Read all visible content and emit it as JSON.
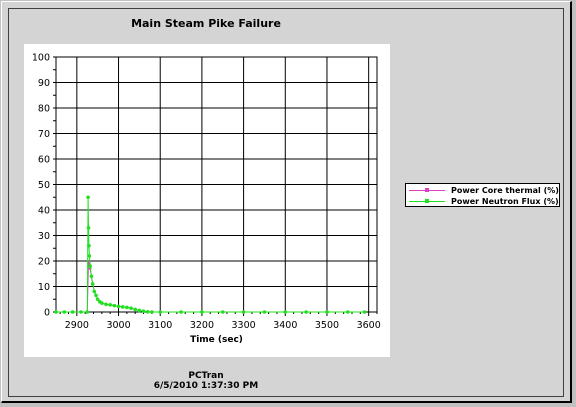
{
  "chart_data": {
    "type": "line",
    "title": "Main Steam Pike Failure",
    "xlabel": "Time (sec)",
    "ylabel": "",
    "xlim": [
      2850,
      3620
    ],
    "ylim": [
      0,
      100
    ],
    "x_ticks": [
      2900,
      3000,
      3100,
      3200,
      3300,
      3400,
      3500,
      3600
    ],
    "y_ticks": [
      0,
      10,
      20,
      30,
      40,
      50,
      60,
      70,
      80,
      90,
      100
    ],
    "grid": true,
    "legend_position": "right",
    "series": [
      {
        "name": "Power Core thermal (%)",
        "color": "#e040c0",
        "x": [
          2850,
          2870,
          2890,
          2910,
          2925,
          2928,
          2930,
          2932,
          2935,
          2938,
          2942,
          2946,
          2950,
          2955,
          2960,
          2970,
          2980,
          2990,
          3000,
          3010,
          3020,
          3030,
          3040,
          3050,
          3060,
          3070,
          3080,
          3100,
          3150,
          3200,
          3250,
          3300,
          3350,
          3400,
          3450,
          3500,
          3550,
          3590
        ],
        "y": [
          0,
          0,
          0,
          0,
          0,
          20,
          19,
          17,
          14,
          11,
          8,
          6.5,
          5,
          4,
          3.5,
          3,
          2.8,
          2.5,
          2.2,
          2,
          1.8,
          1.5,
          1,
          0.6,
          0.3,
          0.1,
          0,
          0,
          0,
          0,
          0,
          0,
          0,
          0,
          0,
          0,
          0,
          0
        ]
      },
      {
        "name": "Power Neutron Flux (%)",
        "color": "#20e020",
        "x": [
          2850,
          2870,
          2890,
          2910,
          2925,
          2927,
          2928,
          2929,
          2930,
          2932,
          2935,
          2938,
          2942,
          2946,
          2950,
          2955,
          2960,
          2970,
          2980,
          2990,
          3000,
          3010,
          3020,
          3030,
          3040,
          3050,
          3060,
          3070,
          3080,
          3100,
          3150,
          3200,
          3250,
          3300,
          3350,
          3400,
          3450,
          3500,
          3550,
          3590
        ],
        "y": [
          0,
          0,
          0,
          0,
          0,
          45,
          33,
          26,
          22,
          18,
          14,
          11,
          8,
          6.5,
          5,
          4,
          3.5,
          3,
          2.8,
          2.5,
          2.2,
          2,
          1.8,
          1.5,
          1,
          0.6,
          0.3,
          0.1,
          0,
          0,
          0,
          0,
          0,
          0,
          0,
          0,
          0,
          0,
          0,
          0
        ]
      }
    ]
  },
  "footer": {
    "line1": "PCTran",
    "line2": "6/5/2010 1:37:30 PM"
  }
}
